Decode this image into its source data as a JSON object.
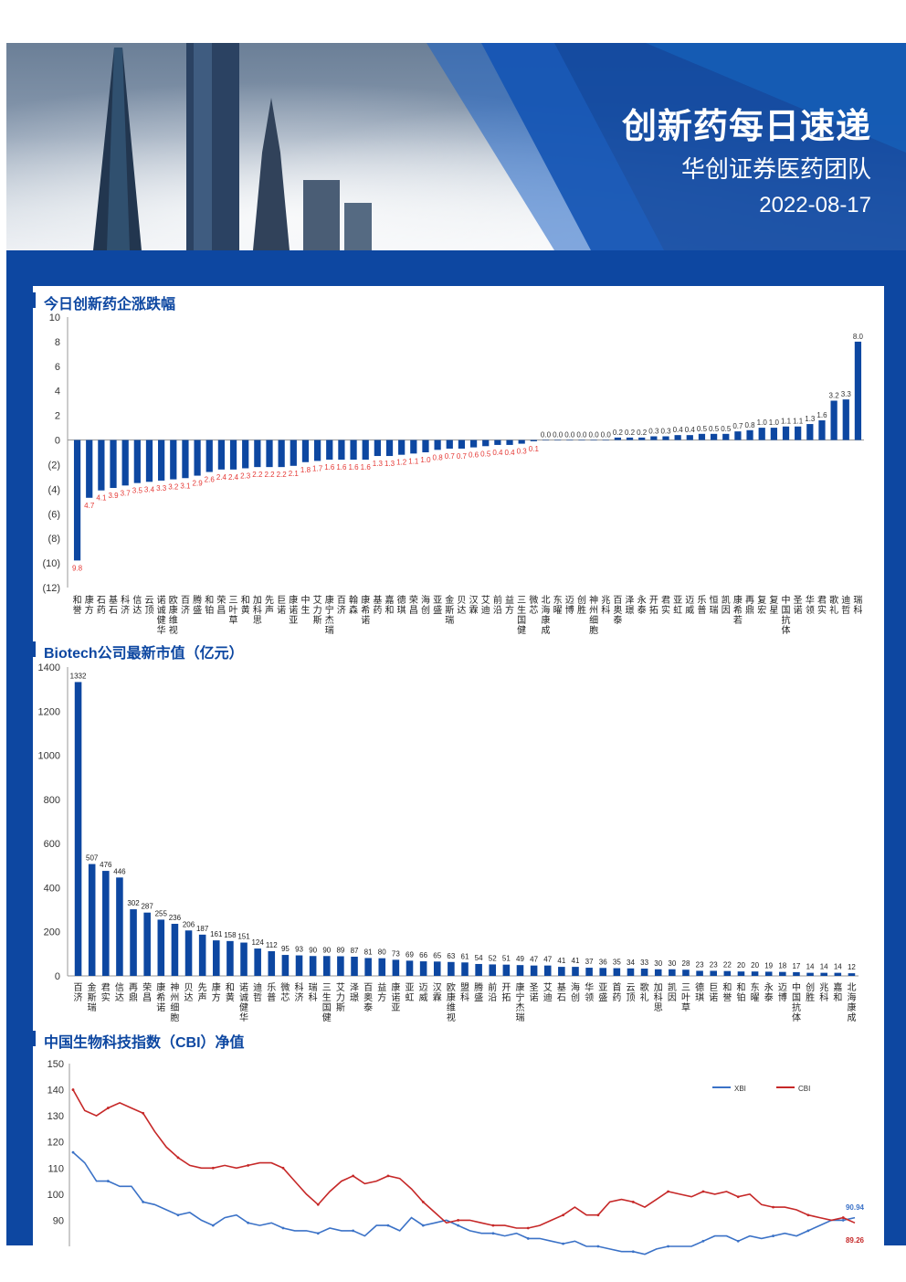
{
  "banner": {
    "title": "创新药每日速递",
    "subtitle": "华创证券医药团队",
    "date": "2022-08-17"
  },
  "sections": {
    "s1": "今日创新药企涨跌幅",
    "s2": "Biotech公司最新市值（亿元）",
    "s3": "中国生物科技指数（CBI）净值"
  },
  "colors": {
    "bar": "#0d47a1",
    "negative_label": "#e53935",
    "xbi": "#3b72c7",
    "cbi": "#c62828",
    "frame": "#0d47a1"
  },
  "chart_data": [
    {
      "type": "bar",
      "title": "今日创新药企涨跌幅",
      "ylim": [
        -12,
        10
      ],
      "yticks": [
        "10",
        "8",
        "6",
        "4",
        "2",
        "0",
        "(2)",
        "(4)",
        "(6)",
        "(8)",
        "(10)",
        "(12)"
      ],
      "categories": [
        "和誉",
        "康方",
        "石药",
        "基石",
        "科济",
        "信达",
        "云顶",
        "诺诚健华",
        "欧康维视",
        "百济",
        "腾盛",
        "和铂",
        "荣昌",
        "三叶草",
        "和黄",
        "加科思",
        "先声",
        "巨诺",
        "康诺亚",
        "中生",
        "艾力斯",
        "康宁杰瑞",
        "百济",
        "翰森",
        "康希诺",
        "基药",
        "嘉和",
        "德琪",
        "荣昌",
        "海创",
        "亚盛",
        "金斯瑞",
        "贝达",
        "汉霖",
        "艾迪",
        "前沿",
        "益方",
        "三生国健",
        "微芯",
        "北海康成",
        "东曜",
        "迈博",
        "创胜",
        "神州细胞",
        "兆科",
        "百奥泰",
        "泽璟",
        "永泰",
        "开拓",
        "君实",
        "亚虹",
        "迈威",
        "乐普",
        "恒瑞",
        "凯因",
        "康希若",
        "再鼎",
        "复宏",
        "复星",
        "中国抗体",
        "圣诺",
        "华领",
        "君实",
        "歌礼",
        "迪哲",
        "瑞科"
      ],
      "values": [
        -9.8,
        -4.7,
        -4.1,
        -3.9,
        -3.7,
        -3.5,
        -3.4,
        -3.3,
        -3.2,
        -3.1,
        -2.9,
        -2.6,
        -2.4,
        -2.4,
        -2.3,
        -2.2,
        -2.2,
        -2.2,
        -2.1,
        -1.8,
        -1.7,
        -1.6,
        -1.6,
        -1.6,
        -1.6,
        -1.3,
        -1.3,
        -1.2,
        -1.1,
        -1.0,
        -0.8,
        -0.7,
        -0.7,
        -0.6,
        -0.5,
        -0.4,
        -0.4,
        -0.3,
        -0.1,
        0.0,
        0.0,
        0.0,
        0.0,
        0.0,
        0.0,
        0.2,
        0.2,
        0.2,
        0.3,
        0.3,
        0.4,
        0.4,
        0.5,
        0.5,
        0.5,
        0.7,
        0.8,
        1.0,
        1.0,
        1.1,
        1.1,
        1.3,
        1.6,
        3.2,
        3.3,
        8.0
      ],
      "labels": [
        "9.8",
        "4.7",
        "4.1",
        "3.9",
        "3.7",
        "3.5",
        "3.4",
        "3.3",
        "3.2",
        "3.1",
        "2.9",
        "2.6",
        "2.4",
        "2.4",
        "2.3",
        "2.2",
        "2.2",
        "2.2",
        "2.1",
        "1.8",
        "1.7",
        "1.6",
        "1.6",
        "1.6",
        "1.6",
        "1.3",
        "1.3",
        "1.2",
        "1.1",
        "1.0",
        "0.8",
        "0.7",
        "0.7",
        "0.6",
        "0.5",
        "0.4",
        "0.4",
        "0.3",
        "0.1",
        "0.0",
        "0.0",
        "0.0",
        "0.0",
        "0.0",
        "0.0",
        "0.2",
        "0.2",
        "0.2",
        "0.3",
        "0.3",
        "0.4",
        "0.4",
        "0.5",
        "0.5",
        "0.5",
        "0.7",
        "0.8",
        "1.0",
        "1.0",
        "1.1",
        "1.1",
        "1.3",
        "1.6",
        "3.2",
        "3.3",
        "8.0"
      ]
    },
    {
      "type": "bar",
      "title": "Biotech公司最新市值（亿元）",
      "ylim": [
        0,
        1400
      ],
      "yticks": [
        "1400",
        "1200",
        "1000",
        "800",
        "600",
        "400",
        "200",
        "0"
      ],
      "categories": [
        "百济",
        "金斯瑞",
        "君实",
        "信达",
        "再鼎",
        "荣昌",
        "康希诺",
        "神州细胞",
        "贝达",
        "先声",
        "康方",
        "和黄",
        "诺诚健华",
        "迪哲",
        "乐普",
        "微芯",
        "科济",
        "瑞科",
        "三生国健",
        "艾力斯",
        "泽璟",
        "百奥泰",
        "益方",
        "康诺亚",
        "亚虹",
        "迈威",
        "汉霖",
        "欧康维视",
        "盟科",
        "腾盛",
        "前沿",
        "开拓",
        "康宁杰瑞",
        "圣诺",
        "艾迪",
        "基石",
        "海创",
        "华领",
        "亚盛",
        "首药",
        "云顶",
        "歌礼",
        "加科思",
        "凯因",
        "三叶草",
        "德琪",
        "巨诺",
        "和誉",
        "和铂",
        "东曜",
        "永泰",
        "迈博",
        "中国抗体",
        "创胜",
        "兆科",
        "嘉和",
        "北海康成"
      ],
      "values": [
        1332,
        507,
        476,
        446,
        302,
        287,
        255,
        236,
        206,
        187,
        161,
        158,
        151,
        124,
        112,
        95,
        93,
        90,
        90,
        89,
        87,
        81,
        80,
        73,
        69,
        66,
        65,
        63,
        61,
        54,
        52,
        51,
        49,
        47,
        47,
        41,
        41,
        37,
        36,
        35,
        34,
        33,
        30,
        30,
        28,
        23,
        23,
        22,
        20,
        20,
        19,
        18,
        17,
        14,
        14,
        14,
        12
      ]
    },
    {
      "type": "line",
      "title": "中国生物科技指数（CBI）净值",
      "ylim": [
        80,
        150
      ],
      "yticks": [
        "150",
        "140",
        "130",
        "120",
        "110",
        "100",
        "90"
      ],
      "legend": [
        "XBI",
        "CBI"
      ],
      "end_labels": [
        "90.94",
        "89.26"
      ],
      "series": [
        {
          "name": "XBI",
          "values": [
            116,
            112,
            105,
            105,
            103,
            103,
            97,
            96,
            94,
            92,
            93,
            90,
            88,
            91,
            92,
            89,
            88,
            89,
            87,
            86,
            86,
            85,
            87,
            86,
            86,
            84,
            88,
            88,
            86,
            91,
            88,
            89,
            90,
            88,
            86,
            85,
            85,
            84,
            85,
            83,
            83,
            82,
            81,
            82,
            80,
            80,
            79,
            78,
            78,
            77,
            79,
            80,
            80,
            80,
            82,
            84,
            84,
            82,
            84,
            83,
            84,
            85,
            84,
            86,
            88,
            90,
            90,
            91
          ]
        },
        {
          "name": "CBI",
          "values": [
            140,
            132,
            130,
            133,
            135,
            133,
            131,
            124,
            118,
            114,
            111,
            110,
            110,
            111,
            110,
            111,
            112,
            112,
            110,
            105,
            100,
            96,
            101,
            105,
            107,
            104,
            105,
            107,
            106,
            102,
            97,
            93,
            89,
            90,
            90,
            89,
            88,
            88,
            87,
            87,
            88,
            90,
            92,
            95,
            92,
            92,
            97,
            98,
            97,
            95,
            98,
            101,
            100,
            99,
            101,
            100,
            101,
            99,
            100,
            96,
            95,
            95,
            94,
            92,
            91,
            90,
            91,
            89
          ]
        }
      ]
    }
  ]
}
